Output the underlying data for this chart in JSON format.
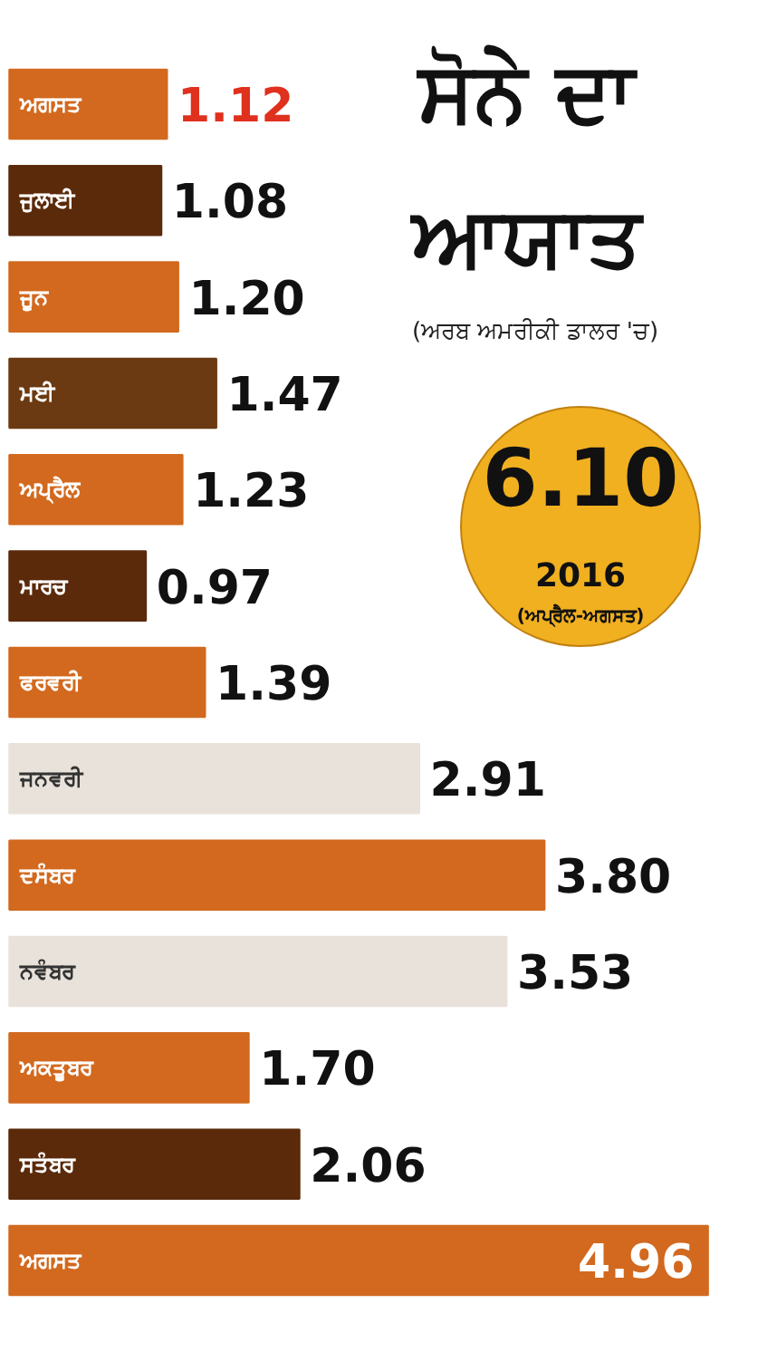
{
  "chart_data": {
    "type": "bar",
    "orientation": "horizontal",
    "title": "ਸੋਨੇ ਦਾ ਆਯਾਤ",
    "subtitle": "(ਅਰਬ ਅਮਰੀਕੀ ਡਾਲਰ 'ਚ)",
    "categories": [
      "ਅਗਸਤ",
      "ਜੁਲਾਈ",
      "ਜੂਨ",
      "ਮਈ",
      "ਅਪ੍ਰੈਲ",
      "ਮਾਰਚ",
      "ਫਰਵਰੀ",
      "ਜਨਵਰੀ",
      "ਦਸੰਬਰ",
      "ਨਵੰਬਰ",
      "ਅਕਤੂਬਰ",
      "ਸਤੰਬਰ",
      "ਅਗਸਤ"
    ],
    "values": [
      1.12,
      1.08,
      1.2,
      1.47,
      1.23,
      0.97,
      1.39,
      2.91,
      3.8,
      3.53,
      1.7,
      2.06,
      4.96
    ],
    "colors": [
      "#d2691e",
      "#5a2a0a",
      "#d2691e",
      "#6b3a12",
      "#d2691e",
      "#5a2a0a",
      "#d2691e",
      "#e8e2da",
      "#d2691e",
      "#e8e2da",
      "#d2691e",
      "#5a2a0a",
      "#d2691e"
    ],
    "value_labels": [
      "1.12",
      "1.08",
      "1.20",
      "1.47",
      "1.23",
      "0.97",
      "1.39",
      "2.91",
      "3.80",
      "3.53",
      "1.70",
      "2.06",
      "4.96"
    ],
    "tick_labels": false,
    "grid": false,
    "annotations": [
      "6.10",
      "2016",
      "(ਅਪ੍ਰੈਲ-ਅਗਸਤ)"
    ]
  }
}
